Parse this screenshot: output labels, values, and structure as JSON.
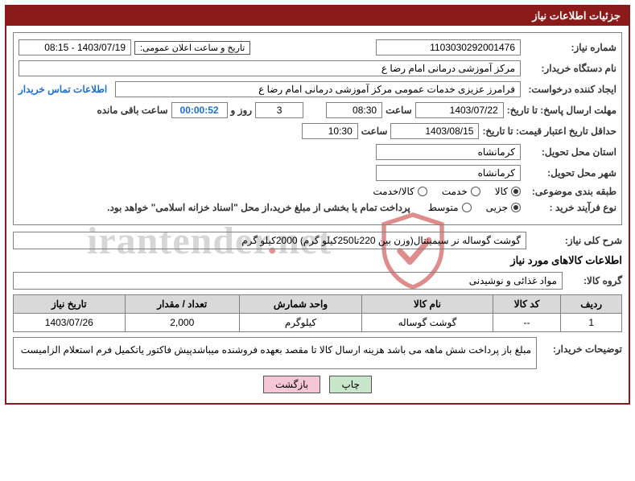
{
  "panel_title": "جزئیات اطلاعات نیاز",
  "labels": {
    "need_no": "شماره نیاز:",
    "announce_datetime": "تاریخ و ساعت اعلان عمومی:",
    "buyer_org": "نام دستگاه خریدار:",
    "requester": "ایجاد کننده درخواست:",
    "deadline_send": "مهلت ارسال پاسخ: تا تاریخ:",
    "time_word": "ساعت",
    "day_and": "روز و",
    "remaining": "ساعت باقی مانده",
    "price_validity": "حداقل تاریخ اعتبار قیمت: تا تاریخ:",
    "delivery_province": "استان محل تحویل:",
    "delivery_city": "شهر محل تحویل:",
    "subject_class": "طبقه بندی موضوعی:",
    "purchase_type": "نوع فرآیند خرید :",
    "overall_desc": "شرح کلی نیاز:",
    "goods_info": "اطلاعات کالاهای مورد نیاز",
    "goods_group": "گروه کالا:",
    "buyer_remarks": "توضیحات خریدار:"
  },
  "values": {
    "need_no": "1103030292001476",
    "announce_datetime": "1403/07/19 - 08:15",
    "buyer_org": "مرکز آموزشی  درمانی امام رضا  ع",
    "requester": "فرامرز عزیزی خدمات عمومی مرکز آموزشی  درمانی امام رضا  ع",
    "contact_link": "اطلاعات تماس خریدار",
    "deadline_date": "1403/07/22",
    "deadline_time": "08:30",
    "days_left": "3",
    "countdown": "00:00:52",
    "validity_date": "1403/08/15",
    "validity_time": "10:30",
    "province": "کرمانشاه",
    "city": "کرمانشاه",
    "overall_desc": "گوشت گوساله نر سیمینتال(وزن بین 220تا250کیلو گرم)  2000کیلو گرم",
    "goods_group": "مواد غذائی و نوشیدنی",
    "buyer_remarks": "مبلغ باز پرداخت شش ماهه می باشد هزینه ارسال کالا تا مقصد بعهده فروشنده میباشدپیش فاکتور یاتکمیل فرم استعلام الزامیست"
  },
  "radios": {
    "class_options": [
      "کالا",
      "خدمت",
      "کالا/خدمت"
    ],
    "class_selected": 0,
    "proc_options": [
      "جزیی",
      "متوسط"
    ],
    "proc_selected": 0,
    "proc_note": "پرداخت تمام یا بخشی از مبلغ خرید،از محل \"اسناد خزانه اسلامی\" خواهد بود."
  },
  "table": {
    "columns": [
      "ردیف",
      "کد کالا",
      "نام کالا",
      "واحد شمارش",
      "تعداد / مقدار",
      "تاریخ نیاز"
    ],
    "rows": [
      [
        "1",
        "--",
        "گوشت گوساله",
        "کیلوگرم",
        "2,000",
        "1403/07/26"
      ]
    ]
  },
  "buttons": {
    "print": "چاپ",
    "back": "بازگشت"
  },
  "watermark": {
    "text_pre": "irantender",
    "text_dot": ".",
    "text_post": "net"
  },
  "colors": {
    "header_bg": "#8b1a1a",
    "border": "#808080",
    "th_bg": "#d9d9d9",
    "link": "#1a6ed8",
    "btn_green": "#c8e6c9",
    "btn_pink": "#f5c6d6"
  }
}
